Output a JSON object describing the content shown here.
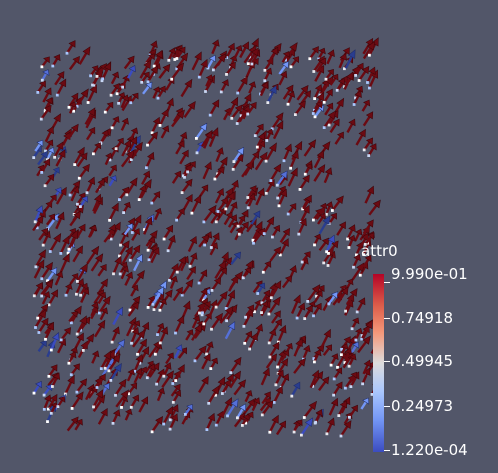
{
  "scene": {
    "background": "#525669",
    "glyph_type": "arrow"
  },
  "legend": {
    "title": "attr0",
    "labels": [
      "9.990e-01",
      "0.74918",
      "0.49945",
      "0.24973",
      "1.220e-04"
    ],
    "colormap": [
      "#3b4cc0",
      "#7396f5",
      "#aac7fd",
      "#dddcdc",
      "#f4987a",
      "#dd5f4b",
      "#b40426"
    ]
  }
}
